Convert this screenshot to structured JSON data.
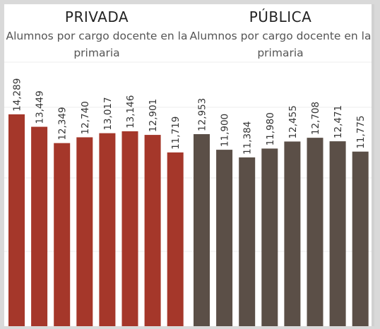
{
  "panels": [
    {
      "title": "PRIVADA",
      "subtitle": "Alumnos por cargo docente en la primaria"
    },
    {
      "title": "PÚBLICA",
      "subtitle": "Alumnos por cargo docente en la primaria"
    }
  ],
  "chart_data": [
    {
      "type": "bar",
      "title": "PRIVADA",
      "subtitle": "Alumnos por cargo docente en la primaria",
      "values": [
        14289,
        13449,
        12349,
        12740,
        13017,
        13146,
        12901,
        11719
      ],
      "labels": [
        "14,289",
        "13,449",
        "12,349",
        "12,740",
        "13,017",
        "13,146",
        "12,901",
        "11,719"
      ],
      "color": "#a5372a",
      "ylim": [
        0,
        17000
      ],
      "grid": true
    },
    {
      "type": "bar",
      "title": "PÚBLICA",
      "subtitle": "Alumnos por cargo docente en la primaria",
      "values": [
        12953,
        11900,
        11384,
        11980,
        12455,
        12708,
        12471,
        11775
      ],
      "labels": [
        "12,953",
        "11,900",
        "11,384",
        "11,980",
        "12,455",
        "12,708",
        "12,471",
        "11,775"
      ],
      "color": "#5b4f47",
      "ylim": [
        0,
        17000
      ],
      "grid": true
    }
  ]
}
